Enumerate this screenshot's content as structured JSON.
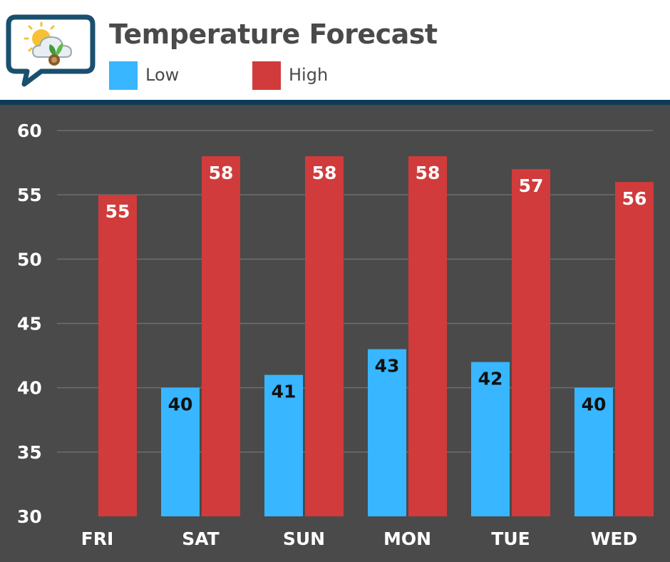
{
  "chart_data": {
    "type": "bar",
    "title": "Temperature Forecast",
    "categories": [
      "FRI",
      "SAT",
      "SUN",
      "MON",
      "TUE",
      "WED"
    ],
    "series": [
      {
        "name": "Low",
        "color": "#38b6ff",
        "values": [
          null,
          40,
          41,
          43,
          42,
          40
        ]
      },
      {
        "name": "High",
        "color": "#d13b3b",
        "values": [
          55,
          58,
          58,
          58,
          57,
          56
        ]
      }
    ],
    "ylim": [
      30,
      60
    ],
    "yticks": [
      30,
      35,
      40,
      45,
      50,
      55,
      60
    ],
    "xlabel": "",
    "ylabel": "",
    "grid": true,
    "legend": "top-left"
  },
  "colors": {
    "background": "#4a4a4a",
    "header": "#ffffff",
    "header_rule": "#0e3a57",
    "gridline": "#6e6e6e",
    "axis_text": "#ffffff"
  },
  "logo": {
    "icon": "weather-chat-bubble-icon"
  }
}
